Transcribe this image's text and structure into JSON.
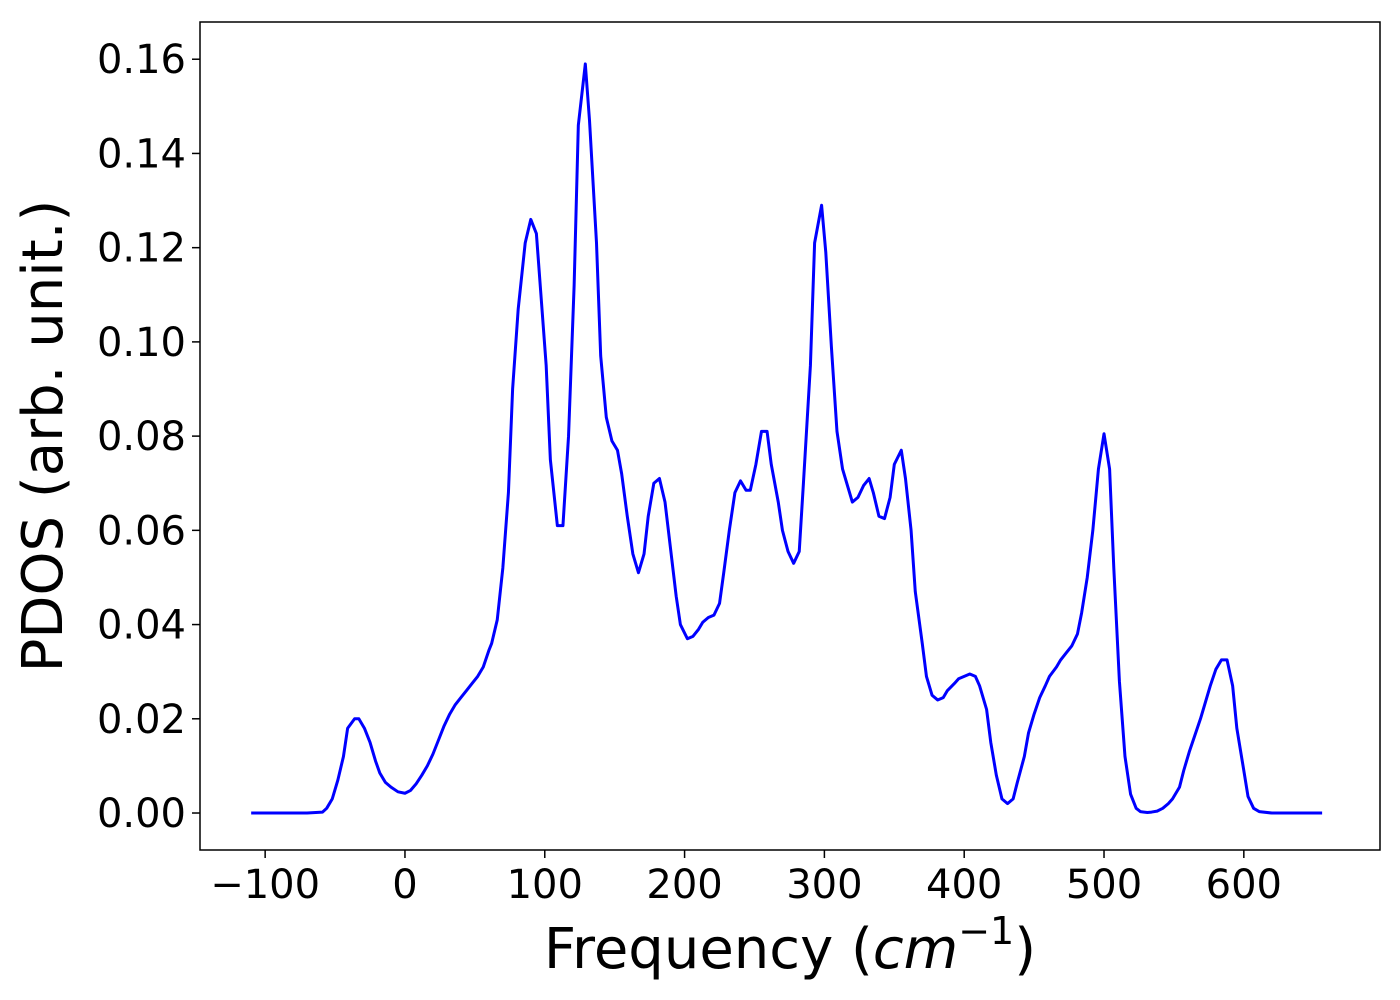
{
  "chart_data": {
    "type": "line",
    "xlabel": [
      "Frequency (",
      "cm",
      "−1",
      ")"
    ],
    "ylabel": "PDOS (arb. unit.)",
    "x": [
      -110,
      -90,
      -70,
      -59,
      -56,
      -52,
      -48,
      -44,
      -41,
      -36,
      -33,
      -29,
      -25,
      -21,
      -18,
      -14,
      -10,
      -5,
      0,
      4,
      8,
      12,
      16,
      20,
      24,
      28,
      32,
      36,
      40,
      44,
      48,
      52,
      56,
      60,
      62,
      66,
      70,
      74,
      77,
      81,
      86,
      90,
      94,
      97,
      101,
      104,
      109,
      113,
      117,
      121,
      124,
      129,
      132,
      137,
      140,
      144,
      148,
      152,
      155,
      159,
      163,
      167,
      171,
      174,
      178,
      182,
      186,
      190,
      194,
      197,
      202,
      206,
      210,
      213,
      217,
      221,
      225,
      228,
      232,
      236,
      240,
      244,
      247,
      251,
      255,
      259,
      262,
      267,
      270,
      274,
      278,
      282,
      285,
      290,
      293,
      298,
      301,
      305,
      309,
      313,
      317,
      320,
      324,
      328,
      332,
      335,
      339,
      343,
      347,
      350,
      355,
      358,
      362,
      365,
      370,
      373,
      377,
      381,
      385,
      388,
      393,
      396,
      400,
      404,
      408,
      411,
      416,
      419,
      423,
      427,
      431,
      435,
      438,
      443,
      446,
      450,
      454,
      458,
      461,
      466,
      469,
      473,
      477,
      481,
      484,
      488,
      492,
      496,
      500,
      504,
      507,
      511,
      515,
      519,
      523,
      526,
      531,
      534,
      538,
      542,
      546,
      549,
      554,
      557,
      561,
      565,
      569,
      572,
      576,
      580,
      584,
      588,
      592,
      595,
      600,
      603,
      607,
      611,
      620,
      640,
      656
    ],
    "series": [
      {
        "name": "PDOS",
        "color": "#0000ff",
        "values": [
          0,
          0,
          0,
          0.0002,
          0.001,
          0.003,
          0.007,
          0.012,
          0.018,
          0.02,
          0.02,
          0.018,
          0.015,
          0.011,
          0.0085,
          0.0065,
          0.0055,
          0.0045,
          0.0042,
          0.0048,
          0.0062,
          0.008,
          0.01,
          0.0125,
          0.0155,
          0.0185,
          0.021,
          0.023,
          0.0245,
          0.026,
          0.0275,
          0.029,
          0.031,
          0.0345,
          0.036,
          0.041,
          0.052,
          0.068,
          0.09,
          0.107,
          0.121,
          0.126,
          0.123,
          0.111,
          0.095,
          0.075,
          0.061,
          0.061,
          0.08,
          0.112,
          0.146,
          0.159,
          0.147,
          0.121,
          0.097,
          0.084,
          0.079,
          0.077,
          0.072,
          0.063,
          0.055,
          0.051,
          0.055,
          0.063,
          0.07,
          0.071,
          0.066,
          0.056,
          0.046,
          0.04,
          0.037,
          0.0375,
          0.039,
          0.0405,
          0.0415,
          0.042,
          0.0445,
          0.051,
          0.06,
          0.068,
          0.0705,
          0.0685,
          0.0685,
          0.074,
          0.081,
          0.081,
          0.074,
          0.066,
          0.06,
          0.0555,
          0.053,
          0.0555,
          0.07,
          0.095,
          0.121,
          0.129,
          0.119,
          0.099,
          0.081,
          0.073,
          0.069,
          0.066,
          0.067,
          0.0695,
          0.071,
          0.068,
          0.063,
          0.0625,
          0.067,
          0.074,
          0.077,
          0.071,
          0.06,
          0.047,
          0.036,
          0.029,
          0.025,
          0.024,
          0.0245,
          0.026,
          0.0275,
          0.0285,
          0.029,
          0.0295,
          0.029,
          0.027,
          0.022,
          0.015,
          0.008,
          0.003,
          0.002,
          0.003,
          0.0065,
          0.012,
          0.017,
          0.021,
          0.0245,
          0.027,
          0.029,
          0.031,
          0.0325,
          0.034,
          0.0355,
          0.038,
          0.0425,
          0.05,
          0.06,
          0.073,
          0.0805,
          0.073,
          0.052,
          0.028,
          0.012,
          0.004,
          0.001,
          0.0003,
          0.0001,
          0.0002,
          0.0004,
          0.001,
          0.002,
          0.003,
          0.0055,
          0.009,
          0.013,
          0.0165,
          0.02,
          0.023,
          0.027,
          0.0305,
          0.0325,
          0.0325,
          0.027,
          0.018,
          0.009,
          0.0035,
          0.001,
          0.0003,
          0,
          0,
          0
        ]
      }
    ],
    "xlim": [
      -146.6,
      697.4
    ],
    "ylim": [
      -0.00785,
      0.1679
    ],
    "xticks": [
      {
        "value": -100,
        "label": "−100"
      },
      0,
      100,
      200,
      300,
      400,
      500,
      600
    ],
    "yticks": [
      {
        "value": 0,
        "label": "0.00"
      },
      {
        "value": 0.02,
        "label": "0.02"
      },
      {
        "value": 0.04,
        "label": "0.04"
      },
      {
        "value": 0.06,
        "label": "0.06"
      },
      {
        "value": 0.08,
        "label": "0.08"
      },
      {
        "value": 0.1,
        "label": "0.10"
      },
      {
        "value": 0.12,
        "label": "0.12"
      },
      {
        "value": 0.14,
        "label": "0.14"
      },
      {
        "value": 0.16,
        "label": "0.16"
      }
    ],
    "grid": false
  }
}
